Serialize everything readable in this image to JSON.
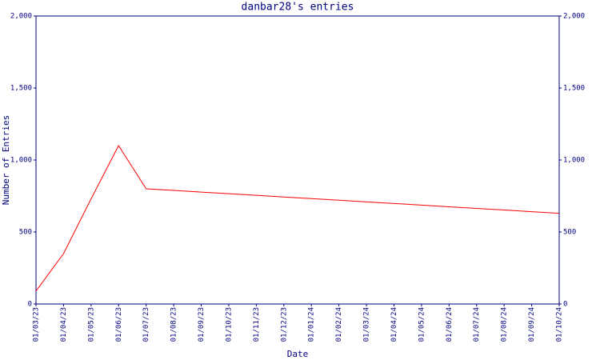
{
  "chart_data": {
    "type": "line",
    "title": "danbar28's entries",
    "x_label": "Date",
    "y_label": "Number of Entries",
    "categories": [
      "01/03/23",
      "01/04/23",
      "01/05/23",
      "01/06/23",
      "01/07/23",
      "01/08/23",
      "01/09/23",
      "01/10/23",
      "01/11/23",
      "01/12/23",
      "01/01/24",
      "01/02/24",
      "01/03/24",
      "01/04/24",
      "01/05/24",
      "01/06/24",
      "01/07/24",
      "01/08/24",
      "01/09/24",
      "01/10/24"
    ],
    "values": [
      90,
      350,
      730,
      1100,
      800,
      789,
      777,
      766,
      755,
      743,
      732,
      721,
      709,
      698,
      687,
      675,
      664,
      653,
      641,
      630
    ],
    "color": "#ff0000",
    "axis_color": "#000080",
    "ylim": [
      0,
      2000
    ],
    "yticks": [
      0,
      500,
      {
        "value": 1000,
        "label": "1,000"
      },
      {
        "value": 1500,
        "label": "1,500"
      },
      {
        "value": 2000,
        "label": "2,000"
      }
    ],
    "y2lim": [
      0,
      2000
    ],
    "y2ticks": [
      0,
      500,
      {
        "value": 1000,
        "label": "1,000"
      },
      {
        "value": 1500,
        "label": "1,500"
      },
      {
        "value": 2000,
        "label": "2,000"
      }
    ]
  }
}
